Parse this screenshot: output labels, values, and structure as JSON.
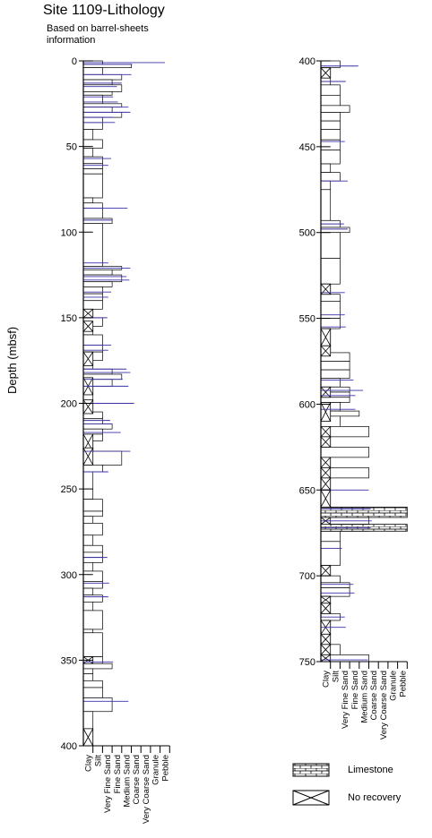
{
  "title": "Site 1109-Lithology",
  "subtitle": "Based on barrel-sheets information",
  "chart_data": {
    "type": "lithologic column",
    "ylabel": "Depth (mbsf)",
    "grain_size_classes": [
      "Clay",
      "Silt",
      "Very Fine Sand",
      "Fine Sand",
      "Medium Sand",
      "Coarse Sand",
      "Very Coarse Sand",
      "Granule",
      "Pebble"
    ],
    "columns": [
      {
        "name": "upper",
        "ylim": [
          0,
          400
        ],
        "yticks": [
          0,
          50,
          100,
          150,
          200,
          250,
          300,
          350,
          400
        ],
        "beds": [
          [
            0,
            2,
            1
          ],
          [
            2,
            4,
            4
          ],
          [
            4,
            8,
            1
          ],
          [
            8,
            11,
            3
          ],
          [
            11,
            14,
            2
          ],
          [
            14,
            18,
            3
          ],
          [
            18,
            20,
            2
          ],
          [
            20,
            25,
            1
          ],
          [
            25,
            27,
            3
          ],
          [
            27,
            30,
            2
          ],
          [
            30,
            33,
            3
          ],
          [
            33,
            36,
            1
          ],
          [
            36,
            40,
            1
          ],
          [
            40,
            46,
            0
          ],
          [
            46,
            51,
            1
          ],
          [
            51,
            56,
            0
          ],
          [
            56,
            60,
            1
          ],
          [
            60,
            63,
            1
          ],
          [
            63,
            66,
            1
          ],
          [
            66,
            80,
            1
          ],
          [
            80,
            83,
            0
          ],
          [
            83,
            86,
            1
          ],
          [
            86,
            92,
            1
          ],
          [
            92,
            95,
            2
          ],
          [
            95,
            120,
            1
          ],
          [
            120,
            122,
            3
          ],
          [
            122,
            125,
            2
          ],
          [
            125,
            129,
            3
          ],
          [
            129,
            132,
            2
          ],
          [
            132,
            136,
            1
          ],
          [
            136,
            140,
            1
          ],
          [
            140,
            145,
            1
          ],
          [
            145,
            150,
            0
          ],
          [
            150,
            155,
            1
          ],
          [
            155,
            160,
            0
          ],
          [
            160,
            166,
            1
          ],
          [
            166,
            170,
            1
          ],
          [
            170,
            175,
            1
          ],
          [
            175,
            180,
            0
          ],
          [
            180,
            183,
            2
          ],
          [
            183,
            186,
            3
          ],
          [
            186,
            190,
            2
          ],
          [
            190,
            205,
            0
          ],
          [
            205,
            209,
            1
          ],
          [
            209,
            212,
            1
          ],
          [
            212,
            215,
            2
          ],
          [
            215,
            218,
            1
          ],
          [
            218,
            222,
            1
          ],
          [
            222,
            228,
            0
          ],
          [
            228,
            236,
            3
          ],
          [
            236,
            240,
            1
          ],
          [
            240,
            256,
            0
          ],
          [
            256,
            263,
            1
          ],
          [
            263,
            266,
            1
          ],
          [
            266,
            270,
            0
          ],
          [
            270,
            277,
            1
          ],
          [
            277,
            283,
            0
          ],
          [
            283,
            287,
            1
          ],
          [
            287,
            290,
            1
          ],
          [
            290,
            293,
            1
          ],
          [
            293,
            298,
            0
          ],
          [
            298,
            304,
            1
          ],
          [
            304,
            308,
            1
          ],
          [
            308,
            312,
            0
          ],
          [
            312,
            316,
            1
          ],
          [
            316,
            321,
            0
          ],
          [
            321,
            332,
            1
          ],
          [
            332,
            334,
            0
          ],
          [
            334,
            348,
            1
          ],
          [
            348,
            352,
            1
          ],
          [
            352,
            355,
            2
          ],
          [
            355,
            358,
            0
          ],
          [
            358,
            362,
            0
          ],
          [
            362,
            366,
            1
          ],
          [
            366,
            372,
            1
          ],
          [
            372,
            380,
            2
          ],
          [
            380,
            390,
            0
          ],
          [
            390,
            400,
            0
          ]
        ],
        "no_recovery": [
          [
            145,
            150
          ],
          [
            152,
            158
          ],
          [
            170,
            178
          ],
          [
            185,
            195
          ],
          [
            198,
            206
          ],
          [
            218,
            228
          ],
          [
            226,
            236
          ],
          [
            348,
            352
          ],
          [
            390,
            400
          ]
        ],
        "limestone": [],
        "thin_lines": [
          [
            1,
            7.5
          ],
          [
            2,
            4.1
          ],
          [
            8,
            4.0
          ],
          [
            13,
            3.0
          ],
          [
            15,
            2.5
          ],
          [
            21,
            2.1
          ],
          [
            24,
            2.6
          ],
          [
            27,
            3.7
          ],
          [
            30,
            3.9
          ],
          [
            33,
            2.1
          ],
          [
            36,
            2.3
          ],
          [
            57,
            1.9
          ],
          [
            61,
            1.6
          ],
          [
            86,
            3.6
          ],
          [
            93,
            2.0
          ],
          [
            118,
            1.6
          ],
          [
            121,
            3.9
          ],
          [
            126,
            3.5
          ],
          [
            128,
            3.8
          ],
          [
            135,
            1.9
          ],
          [
            138,
            1.6
          ],
          [
            150,
            1.5
          ],
          [
            166,
            1.9
          ],
          [
            169,
            1.6
          ],
          [
            180,
            3.5
          ],
          [
            182,
            3.9
          ],
          [
            186,
            3.1
          ],
          [
            190,
            3.7
          ],
          [
            200,
            4.3
          ],
          [
            210,
            1.8
          ],
          [
            212,
            2.0
          ],
          [
            217,
            2.9
          ],
          [
            228,
            3.9
          ],
          [
            240,
            1.6
          ],
          [
            290,
            1.5
          ],
          [
            305,
            1.7
          ],
          [
            313,
            1.6
          ],
          [
            351,
            2.1
          ],
          [
            374,
            3.7
          ]
        ]
      },
      {
        "name": "lower",
        "ylim": [
          400,
          750
        ],
        "yticks": [
          400,
          450,
          500,
          550,
          600,
          650,
          700,
          750
        ],
        "beds": [
          [
            400,
            404,
            1
          ],
          [
            404,
            409,
            0
          ],
          [
            409,
            414,
            0
          ],
          [
            414,
            420,
            1
          ],
          [
            420,
            426,
            1
          ],
          [
            426,
            430,
            2
          ],
          [
            430,
            435,
            1
          ],
          [
            435,
            440,
            1
          ],
          [
            440,
            446,
            1
          ],
          [
            446,
            452,
            1
          ],
          [
            452,
            460,
            1
          ],
          [
            460,
            465,
            0
          ],
          [
            465,
            470,
            1
          ],
          [
            470,
            475,
            0
          ],
          [
            475,
            493,
            0
          ],
          [
            493,
            497,
            1
          ],
          [
            497,
            500,
            2
          ],
          [
            500,
            515,
            1
          ],
          [
            515,
            530,
            1
          ],
          [
            530,
            536,
            0
          ],
          [
            536,
            540,
            1
          ],
          [
            540,
            550,
            1
          ],
          [
            550,
            556,
            1
          ],
          [
            556,
            560,
            0
          ],
          [
            560,
            566,
            0
          ],
          [
            566,
            570,
            0
          ],
          [
            570,
            575,
            2
          ],
          [
            575,
            580,
            2
          ],
          [
            580,
            585,
            2
          ],
          [
            585,
            590,
            1
          ],
          [
            590,
            593,
            2
          ],
          [
            593,
            596,
            2
          ],
          [
            596,
            599,
            2
          ],
          [
            599,
            604,
            1
          ],
          [
            604,
            607,
            3
          ],
          [
            607,
            613,
            1
          ],
          [
            613,
            619,
            4
          ],
          [
            619,
            625,
            0
          ],
          [
            625,
            631,
            4
          ],
          [
            631,
            637,
            0
          ],
          [
            637,
            643,
            4
          ],
          [
            643,
            650,
            0
          ],
          [
            650,
            660,
            0
          ],
          [
            660,
            666,
            4
          ],
          [
            666,
            670,
            4
          ],
          [
            670,
            674,
            4
          ],
          [
            674,
            680,
            1
          ],
          [
            680,
            694,
            1
          ],
          [
            694,
            700,
            0
          ],
          [
            700,
            704,
            1
          ],
          [
            704,
            707,
            2
          ],
          [
            707,
            712,
            2
          ],
          [
            712,
            716,
            0
          ],
          [
            716,
            722,
            0
          ],
          [
            722,
            726,
            1
          ],
          [
            726,
            734,
            0
          ],
          [
            734,
            740,
            0
          ],
          [
            740,
            746,
            1
          ],
          [
            746,
            750,
            4
          ]
        ],
        "no_recovery": [
          [
            404,
            410
          ],
          [
            530,
            536
          ],
          [
            556,
            566
          ],
          [
            566,
            572
          ],
          [
            590,
            596
          ],
          [
            599,
            610
          ],
          [
            613,
            619
          ],
          [
            619,
            625
          ],
          [
            631,
            637
          ],
          [
            637,
            643
          ],
          [
            643,
            650
          ],
          [
            650,
            660
          ],
          [
            666,
            670
          ],
          [
            694,
            700
          ],
          [
            712,
            716
          ],
          [
            716,
            722
          ],
          [
            726,
            734
          ],
          [
            734,
            740
          ],
          [
            740,
            746
          ],
          [
            746,
            750
          ]
        ],
        "limestone": [
          [
            660,
            666
          ],
          [
            670,
            674
          ]
        ],
        "thin_lines": [
          [
            403,
            2.9
          ],
          [
            412,
            1.6
          ],
          [
            447,
            1.5
          ],
          [
            470,
            1.8
          ],
          [
            495,
            1.4
          ],
          [
            498,
            1.8
          ],
          [
            535,
            1.5
          ],
          [
            548,
            1.5
          ],
          [
            555,
            1.6
          ],
          [
            586,
            2.4
          ],
          [
            592,
            3.4
          ],
          [
            595,
            2.6
          ],
          [
            603,
            2.6
          ],
          [
            650,
            4.0
          ],
          [
            661,
            4.2
          ],
          [
            668,
            4.3
          ],
          [
            672,
            4.2
          ],
          [
            684,
            1.2
          ],
          [
            705,
            2.4
          ],
          [
            710,
            2.5
          ],
          [
            724,
            1.5
          ],
          [
            730,
            1.6
          ],
          [
            749,
            3.9
          ]
        ]
      }
    ]
  },
  "legend": [
    {
      "label": "Limestone",
      "pattern": "limestone"
    },
    {
      "label": "No recovery",
      "pattern": "no-recovery"
    }
  ],
  "colors": {
    "frame": "#000000",
    "thin_line": "#3a30a8",
    "dark_line": "#1a1060"
  }
}
